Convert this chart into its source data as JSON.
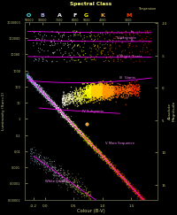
{
  "title": "Spectral Class",
  "xlabel": "Colour (B-V)",
  "ylabel_left": "Luminosity (Sun=1)",
  "ylabel_right": "Absolute\nMagnitude",
  "bg_color": "#000000",
  "spectral_classes": [
    "O",
    "B",
    "A",
    "F",
    "G",
    "K",
    "M"
  ],
  "spectral_colors": [
    "#44ffff",
    "#aaaaff",
    "#ffffff",
    "#ffffff",
    "#ffff00",
    "#ffaa33",
    "#ff4400"
  ],
  "sp_bv": [
    -0.28,
    -0.05,
    0.25,
    0.52,
    0.72,
    1.0,
    1.45
  ],
  "temp_labels": [
    "50000",
    "10000",
    "7500",
    "6000",
    "5000",
    "4000",
    "3000",
    "Temperature"
  ],
  "temp_bv": [
    -0.28,
    -0.05,
    0.25,
    0.52,
    0.72,
    1.0,
    1.45
  ],
  "xlim": [
    -0.35,
    1.95
  ],
  "ylim": [
    1e-05,
    1000000
  ],
  "curve_color": "#ff00ff",
  "label_color": "#ff88ff",
  "text_color": "#cccc88",
  "mag_ticks": [
    15,
    10,
    5,
    0,
    -5,
    -10
  ],
  "yticks": [
    1e-05,
    0.0001,
    0.001,
    0.01,
    0.1,
    1,
    10,
    100,
    1000,
    10000,
    100000,
    1000000
  ],
  "ylabels": [
    "0.00001",
    "0.0001",
    "0.001",
    "0.01",
    "0.1",
    "1",
    "10",
    "100",
    "1000",
    "10000",
    "100000",
    "1000000"
  ],
  "xticks": [
    -0.2,
    0.0,
    0.5,
    1.0,
    1.5
  ],
  "star_seed": 42
}
